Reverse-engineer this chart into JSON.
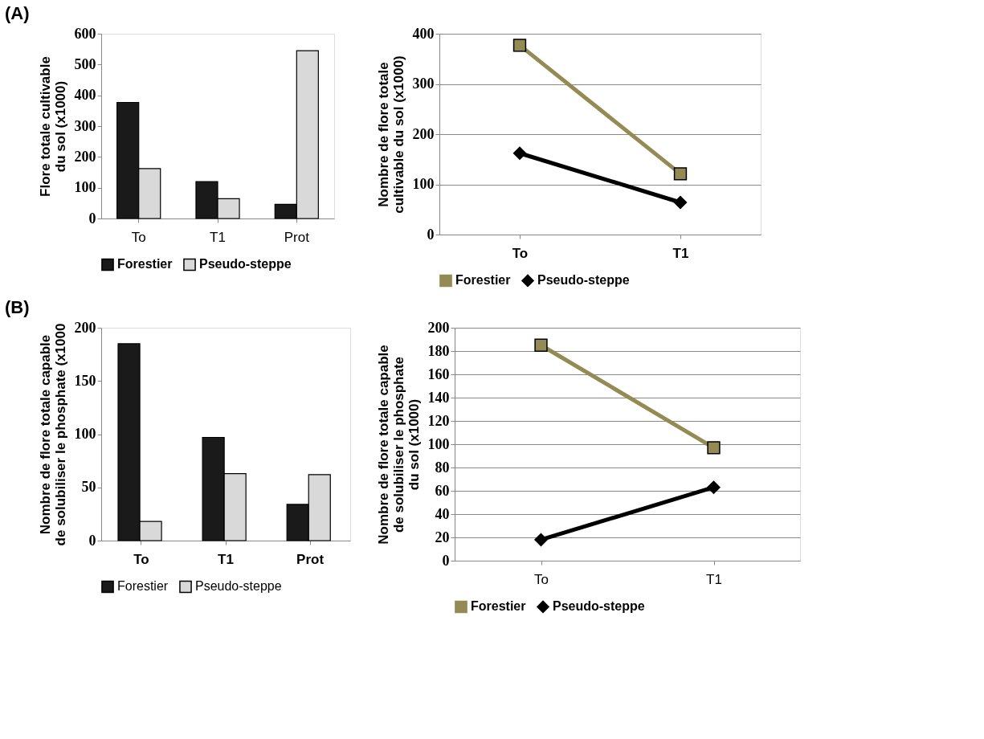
{
  "chart_data": [
    {
      "type": "bar",
      "annotations": [
        "(A)"
      ],
      "ylabel": "Flore totale cultivable\ndu sol (x1000)",
      "categories": [
        "To",
        "T1",
        "Prot"
      ],
      "ylim": [
        0,
        600
      ],
      "yticks": [
        0,
        100,
        200,
        300,
        400,
        500,
        600
      ],
      "grid": false,
      "legend": "bottom",
      "series": [
        {
          "name": "Forestier",
          "color": "#1a1a1a",
          "values": [
            377,
            120,
            46
          ]
        },
        {
          "name": "Pseudo-steppe",
          "color": "#d9d9d9",
          "values": [
            162,
            64,
            545
          ]
        }
      ]
    },
    {
      "type": "line",
      "ylabel": "Nombre de flore totale\ncultivable du sol (x1000)",
      "categories": [
        "To",
        "T1"
      ],
      "ylim": [
        0,
        400
      ],
      "yticks": [
        0,
        100,
        200,
        300,
        400
      ],
      "grid": "y",
      "legend": "bottom",
      "line_style": "solid",
      "series": [
        {
          "name": "Forestier",
          "color": "#948a54",
          "marker": "square",
          "values": [
            377,
            121
          ]
        },
        {
          "name": "Pseudo-steppe",
          "color": "#000000",
          "marker": "diamond",
          "values": [
            162,
            64
          ]
        }
      ]
    },
    {
      "type": "bar",
      "annotations": [
        "(B)"
      ],
      "ylabel": "Nombre de flore totale capable\nde solubiliser le phosphate (x1000",
      "categories": [
        "To",
        "T1",
        "Prot"
      ],
      "ylim": [
        0,
        200
      ],
      "yticks": [
        0,
        50,
        100,
        150,
        200
      ],
      "grid": false,
      "legend": "bottom",
      "series": [
        {
          "name": "Forestier",
          "color": "#1a1a1a",
          "values": [
            185,
            97,
            34
          ]
        },
        {
          "name": "Pseudo-steppe",
          "color": "#d9d9d9",
          "values": [
            18,
            63,
            62
          ]
        }
      ]
    },
    {
      "type": "line",
      "ylabel": "Nombre de flore totale capable\nde solubiliser le phosphate\ndu sol (x1000)",
      "categories": [
        "To",
        "T1"
      ],
      "ylim": [
        0,
        200
      ],
      "yticks": [
        0,
        20,
        40,
        60,
        80,
        100,
        120,
        140,
        160,
        180,
        200
      ],
      "grid": "y",
      "legend": "bottom",
      "line_style": "solid",
      "series": [
        {
          "name": "Forestier",
          "color": "#948a54",
          "marker": "square",
          "values": [
            185,
            97
          ]
        },
        {
          "name": "Pseudo-steppe",
          "color": "#000000",
          "marker": "diamond",
          "values": [
            18,
            63
          ]
        }
      ]
    }
  ]
}
